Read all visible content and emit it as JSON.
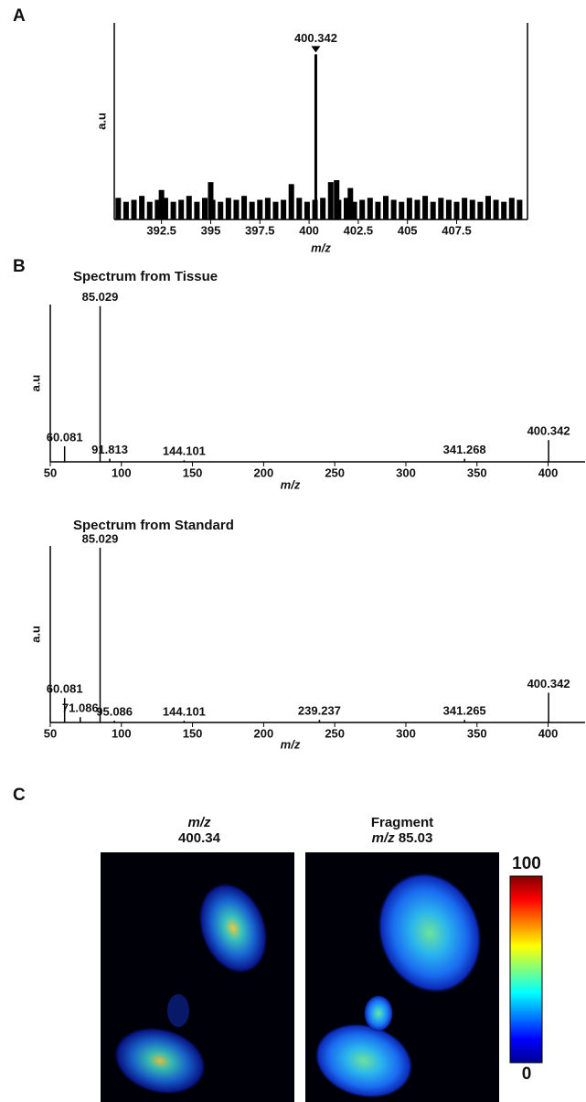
{
  "panel_labels": [
    "A",
    "B",
    "C"
  ],
  "chart_data": [
    {
      "type": "spectrum",
      "xlabel": "m/z",
      "ylabel": "a.u",
      "xlim": [
        390.1,
        411.1
      ],
      "ylim": [
        0,
        100
      ],
      "xticks": [
        392.5,
        395,
        397.5,
        400,
        402.5,
        405,
        407.5
      ],
      "frame": true,
      "color": "#000000",
      "peaks": {
        "x": [
          400.342
        ],
        "values": [
          84
        ]
      },
      "noise": {
        "x": [
          390.3,
          390.7,
          391.1,
          391.5,
          391.9,
          392.3,
          392.5,
          392.7,
          393.1,
          393.5,
          393.9,
          394.3,
          394.7,
          395.0,
          395.1,
          395.5,
          395.9,
          396.3,
          396.7,
          397.1,
          397.5,
          397.9,
          398.3,
          398.7,
          399.1,
          399.5,
          399.9,
          400.3,
          400.7,
          401.1,
          401.4,
          401.5,
          401.9,
          402.1,
          402.3,
          402.7,
          403.1,
          403.5,
          403.9,
          404.3,
          404.7,
          405.1,
          405.5,
          405.9,
          406.3,
          406.7,
          407.1,
          407.5,
          407.9,
          408.3,
          408.7,
          409.1,
          409.5,
          409.9,
          410.3,
          410.7
        ],
        "values": [
          11,
          9,
          10,
          12,
          9,
          10,
          15,
          11,
          9,
          10,
          12,
          9,
          11,
          19,
          10,
          9,
          11,
          10,
          12,
          9,
          10,
          11,
          9,
          10,
          18,
          11,
          9,
          10,
          11,
          19,
          20,
          10,
          11,
          16,
          9,
          10,
          11,
          9,
          12,
          10,
          9,
          11,
          10,
          12,
          9,
          11,
          10,
          9,
          11,
          10,
          9,
          12,
          10,
          9,
          11,
          10
        ]
      }
    },
    {
      "type": "spectrum",
      "title": "Spectrum from Tissue",
      "xlabel": "m/z",
      "ylabel": "a.u",
      "xlim": [
        50,
        426
      ],
      "ylim": [
        0,
        101
      ],
      "xticks": [
        50,
        100,
        150,
        200,
        250,
        300,
        350,
        400
      ],
      "color": "#000000",
      "peaks": {
        "x": [
          60.081,
          85.029,
          91.813,
          144.101,
          341.268,
          400.342
        ],
        "values": [
          10,
          100,
          2,
          1,
          2,
          14
        ]
      }
    },
    {
      "type": "spectrum",
      "title": "Spectrum from Standard",
      "xlabel": "m/z",
      "ylabel": "a.u",
      "xlim": [
        50,
        426
      ],
      "ylim": [
        0,
        101
      ],
      "xticks": [
        50,
        100,
        150,
        200,
        250,
        300,
        350,
        400
      ],
      "color": "#000000",
      "peaks": {
        "x": [
          60.081,
          71.086,
          85.029,
          95.086,
          144.101,
          239.237,
          341.265,
          400.342
        ],
        "values": [
          14,
          3,
          100,
          1,
          1,
          1.5,
          1.5,
          17
        ]
      }
    }
  ],
  "image_panel": {
    "images": [
      {
        "title_italic": "m/z",
        "title": "400.34"
      },
      {
        "title": "Fragment",
        "subtitle_italic": "m/z",
        "subtitle": "85.03"
      }
    ],
    "colorbar": {
      "colormap": "jet",
      "ylim": [
        0,
        100
      ],
      "yticks": [
        0,
        100
      ]
    }
  }
}
